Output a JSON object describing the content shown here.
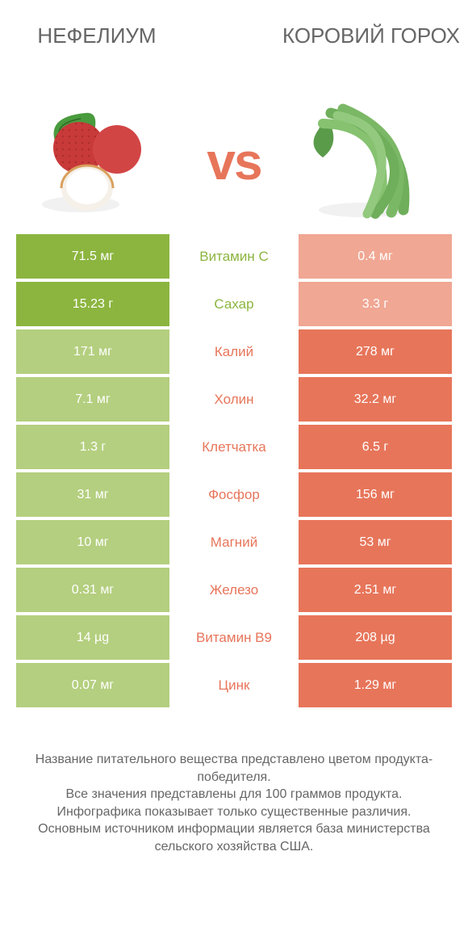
{
  "colors": {
    "left_win": "#8cb53f",
    "left_lose": "#b4cf7f",
    "right_win": "#e7755a",
    "right_lose": "#f0a793",
    "vs_color": "#e7755a",
    "label_left": "#8cb53f",
    "label_right": "#e7755a",
    "text": "#666666"
  },
  "header": {
    "left": "Нефелиум",
    "right": "Коровий горох"
  },
  "vs_text": "vs",
  "rows": [
    {
      "left": "71.5 мг",
      "label": "Витамин С",
      "right": "0.4 мг",
      "winner": "left"
    },
    {
      "left": "15.23 г",
      "label": "Сахар",
      "right": "3.3 г",
      "winner": "left"
    },
    {
      "left": "171 мг",
      "label": "Калий",
      "right": "278 мг",
      "winner": "right"
    },
    {
      "left": "7.1 мг",
      "label": "Холин",
      "right": "32.2 мг",
      "winner": "right"
    },
    {
      "left": "1.3 г",
      "label": "Клетчатка",
      "right": "6.5 г",
      "winner": "right"
    },
    {
      "left": "31 мг",
      "label": "Фосфор",
      "right": "156 мг",
      "winner": "right"
    },
    {
      "left": "10 мг",
      "label": "Магний",
      "right": "53 мг",
      "winner": "right"
    },
    {
      "left": "0.31 мг",
      "label": "Железо",
      "right": "2.51 мг",
      "winner": "right"
    },
    {
      "left": "14 µg",
      "label": "Витамин B9",
      "right": "208 µg",
      "winner": "right"
    },
    {
      "left": "0.07 мг",
      "label": "Цинк",
      "right": "1.29 мг",
      "winner": "right"
    }
  ],
  "footer": {
    "line1": "Название питательного вещества представлено цветом продукта-победителя.",
    "line2": "Все значения представлены для 100 граммов продукта.",
    "line3": "Инфографика показывает только существенные различия.",
    "line4": "Основным источником информации является база министерства сельского хозяйства США."
  }
}
